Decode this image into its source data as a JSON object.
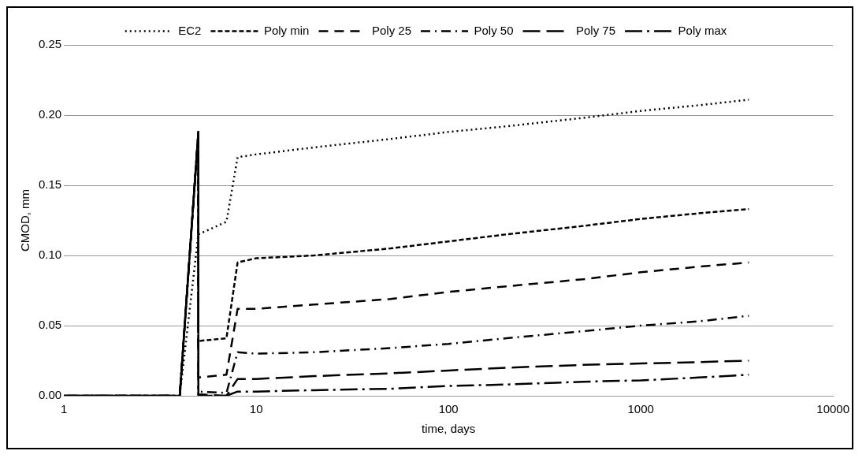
{
  "chart_data": {
    "type": "line",
    "xlabel": "time, days",
    "ylabel": "CMOD, mm",
    "log": "x",
    "xlim": [
      1,
      10000
    ],
    "xticks": [
      1,
      10,
      100,
      1000,
      10000
    ],
    "ylim": [
      0,
      0.25
    ],
    "yticks": [
      {
        "value": 0,
        "label": "0.00"
      },
      {
        "value": 0.05,
        "label": "0.05"
      },
      {
        "value": 0.1,
        "label": "0.10"
      },
      {
        "value": 0.15,
        "label": "0.15"
      },
      {
        "value": 0.2,
        "label": "0.20"
      },
      {
        "value": 0.25,
        "label": "0.25"
      }
    ],
    "grid": "y",
    "legend": "top",
    "marker": "none",
    "series": [
      {
        "name": "EC2",
        "color": "#000000",
        "line_style": "dotted",
        "x": [
          1,
          2,
          3,
          4,
          5,
          7,
          8,
          10,
          20,
          50,
          100,
          200,
          500,
          1000,
          2000,
          3650
        ],
        "values": [
          0,
          0,
          0,
          0,
          0.115,
          0.124,
          0.17,
          0.172,
          0.177,
          0.183,
          0.188,
          0.192,
          0.198,
          0.203,
          0.207,
          0.211
        ]
      },
      {
        "name": "Poly min",
        "color": "#000000",
        "line_style": "dashed",
        "x": [
          1,
          2,
          3,
          4,
          5,
          5,
          7,
          8,
          10,
          20,
          50,
          100,
          200,
          500,
          1000,
          2000,
          3650
        ],
        "values": [
          0,
          0,
          0,
          0,
          0.188,
          0.039,
          0.041,
          0.095,
          0.098,
          0.1,
          0.105,
          0.11,
          0.115,
          0.121,
          0.126,
          0.13,
          0.133
        ]
      },
      {
        "name": "Poly 25",
        "color": "#000000",
        "line_style": "dashed",
        "x": [
          1,
          2,
          3,
          4,
          5,
          5,
          7,
          8,
          10,
          20,
          50,
          100,
          200,
          500,
          1000,
          2000,
          3650
        ],
        "values": [
          0,
          0,
          0,
          0,
          0.188,
          0.013,
          0.015,
          0.062,
          0.062,
          0.065,
          0.069,
          0.074,
          0.078,
          0.083,
          0.088,
          0.092,
          0.095
        ]
      },
      {
        "name": "Poly 50",
        "color": "#000000",
        "line_style": "dashed",
        "x": [
          1,
          2,
          3,
          4,
          5,
          5,
          7,
          8,
          10,
          20,
          50,
          100,
          200,
          500,
          1000,
          2000,
          3650
        ],
        "values": [
          0,
          0,
          0,
          0,
          0.188,
          0.003,
          0.002,
          0.031,
          0.03,
          0.031,
          0.034,
          0.037,
          0.041,
          0.046,
          0.05,
          0.053,
          0.057
        ]
      },
      {
        "name": "Poly 75",
        "color": "#000000",
        "line_style": "dashed",
        "x": [
          1,
          2,
          3,
          4,
          5,
          5,
          7,
          8,
          10,
          20,
          50,
          100,
          200,
          500,
          1000,
          2000,
          3650
        ],
        "values": [
          0,
          0,
          0,
          0,
          0.188,
          0.001,
          0,
          0.012,
          0.012,
          0.014,
          0.016,
          0.018,
          0.02,
          0.022,
          0.023,
          0.024,
          0.025
        ]
      },
      {
        "name": "Poly max",
        "color": "#000000",
        "line_style": "dashed",
        "x": [
          1,
          2,
          3,
          4,
          5,
          5,
          7,
          8,
          10,
          20,
          50,
          100,
          200,
          500,
          1000,
          2000,
          3650
        ],
        "values": [
          0,
          0,
          0,
          0,
          0.188,
          0,
          0,
          0.003,
          0.003,
          0.004,
          0.005,
          0.007,
          0.008,
          0.01,
          0.011,
          0.013,
          0.015
        ]
      }
    ]
  }
}
